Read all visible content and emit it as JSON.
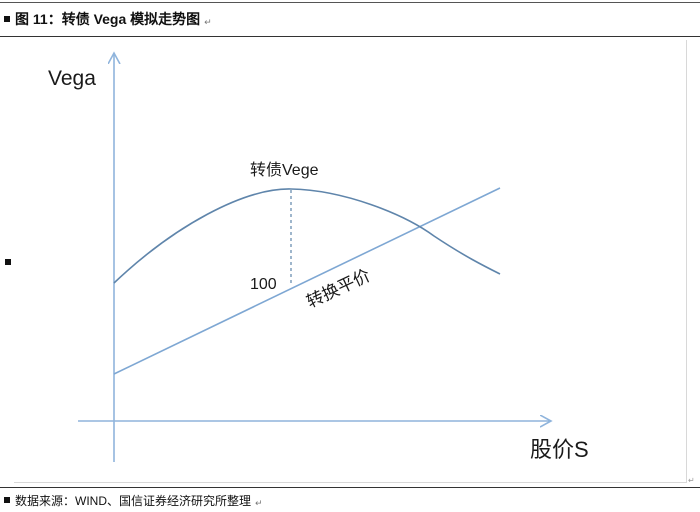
{
  "header": {
    "title": "图 11：转债 Vega 模拟走势图",
    "end_mark": "↵"
  },
  "diagram": {
    "y_axis_label": "Vega",
    "x_axis_label": "股价S",
    "curve_label": "转债Vege",
    "line_label": "转换平价",
    "gap_value": "100",
    "colors": {
      "axis": "#8fb4dc",
      "curve": "#5f85ab",
      "line": "#7ea7d3",
      "text": "#1a1a1a"
    }
  },
  "footer": {
    "source": "数据来源：WIND、国信证券经济研究所整理",
    "end_mark": "↵",
    "corner_mark": "↵"
  }
}
